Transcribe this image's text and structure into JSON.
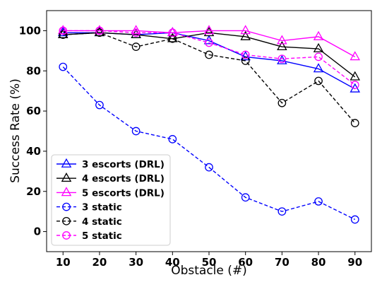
{
  "chart_data": {
    "type": "line",
    "title": "",
    "xlabel": "Obstacle (#)",
    "ylabel": "Success Rate (%)",
    "x": [
      10,
      20,
      30,
      40,
      50,
      60,
      70,
      80,
      90
    ],
    "xlim": [
      5.5,
      94.5
    ],
    "ylim": [
      -10,
      110
    ],
    "yticks": [
      0,
      20,
      40,
      60,
      80,
      100
    ],
    "grid": false,
    "legend_position": "lower-left",
    "series": [
      {
        "name": "3 escorts (DRL)",
        "color": "#0000ff",
        "marker": "triangle",
        "linestyle": "solid",
        "values": [
          99,
          99,
          98,
          99,
          95,
          87,
          85,
          81,
          71
        ]
      },
      {
        "name": "4 escorts (DRL)",
        "color": "#000000",
        "marker": "triangle",
        "linestyle": "solid",
        "values": [
          98,
          99,
          98,
          96,
          99,
          97,
          92,
          91,
          77
        ]
      },
      {
        "name": "5 escorts (DRL)",
        "color": "#ff00ff",
        "marker": "triangle",
        "linestyle": "solid",
        "values": [
          100,
          100,
          100,
          99,
          100,
          100,
          95,
          97,
          87
        ]
      },
      {
        "name": "3 static",
        "color": "#0000ff",
        "marker": "circle",
        "linestyle": "dashed",
        "values": [
          82,
          63,
          50,
          46,
          32,
          17,
          10,
          15,
          6
        ]
      },
      {
        "name": "4 static",
        "color": "#000000",
        "marker": "circle",
        "linestyle": "dashed",
        "values": [
          98,
          99,
          92,
          96,
          88,
          85,
          64,
          75,
          54
        ]
      },
      {
        "name": "5 static",
        "color": "#ff00ff",
        "marker": "circle",
        "linestyle": "dashed",
        "values": [
          100,
          100,
          99,
          99,
          94,
          88,
          86,
          87,
          73
        ]
      }
    ]
  }
}
